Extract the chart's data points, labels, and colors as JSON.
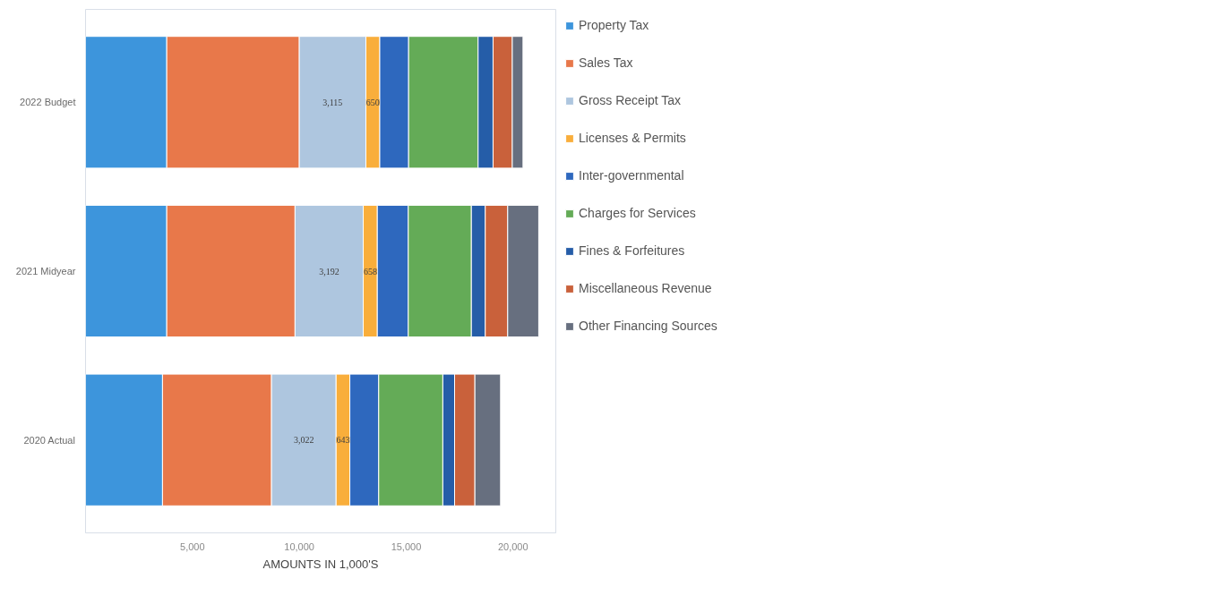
{
  "chart_data": {
    "type": "bar",
    "orientation": "horizontal",
    "stacked": true,
    "xlabel": "AMOUNTS IN 1,000'S",
    "categories": [
      "2022 Budget",
      "2021 Midyear",
      "2020 Actual"
    ],
    "series": [
      {
        "name": "Property Tax",
        "color": "#3d95dc",
        "values": [
          3800,
          3800,
          3600
        ]
      },
      {
        "name": "Sales Tax",
        "color": "#e8784a",
        "values": [
          6200,
          6000,
          5100
        ]
      },
      {
        "name": "Gross Receipt Tax",
        "color": "#aec6df",
        "values": [
          3115,
          3192,
          3022
        ],
        "value_labels": [
          "3,115",
          "3,192",
          "3,022"
        ]
      },
      {
        "name": "Licenses & Permits",
        "color": "#f9ae3b",
        "values": [
          650,
          658,
          643
        ],
        "value_labels": [
          "650",
          "658",
          "643"
        ]
      },
      {
        "name": "Inter-governmental",
        "color": "#2e68be",
        "values": [
          1350,
          1450,
          1350
        ]
      },
      {
        "name": "Charges for Services",
        "color": "#64ab57",
        "values": [
          3250,
          2950,
          3000
        ]
      },
      {
        "name": "Fines & Forfeitures",
        "color": "#255da8",
        "values": [
          700,
          650,
          550
        ]
      },
      {
        "name": "Miscellaneous Revenue",
        "color": "#c9613b",
        "values": [
          900,
          1050,
          950
        ]
      },
      {
        "name": "Other Financing Sources",
        "color": "#676f7f",
        "values": [
          500,
          1450,
          1200
        ]
      }
    ],
    "xlim": [
      0,
      22000
    ],
    "xticks": [
      {
        "value": 0,
        "label": null
      },
      {
        "value": 5000,
        "label": "5,000"
      },
      {
        "value": 10000,
        "label": "10,000"
      },
      {
        "value": 15000,
        "label": "15,000"
      },
      {
        "value": 20000,
        "label": "20,000"
      }
    ],
    "grid": false,
    "legend": "right"
  }
}
